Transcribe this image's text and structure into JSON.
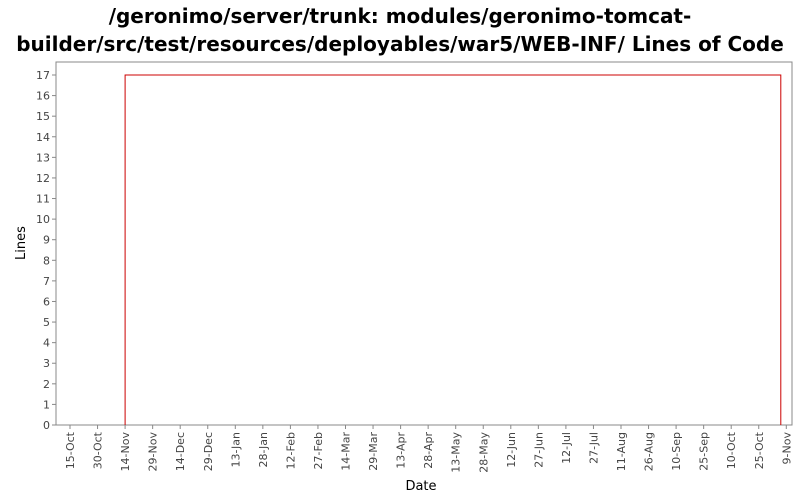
{
  "chart_data": {
    "type": "line",
    "title_lines": [
      "/geronimo/server/trunk: modules/geronimo-tomcat-",
      "builder/src/test/resources/deployables/war5/WEB-INF/ Lines of Code"
    ],
    "xlabel": "Date",
    "ylabel": "Lines",
    "x_tick_labels": [
      "15-Oct",
      "30-Oct",
      "14-Nov",
      "29-Nov",
      "14-Dec",
      "29-Dec",
      "13-Jan",
      "28-Jan",
      "12-Feb",
      "27-Feb",
      "14-Mar",
      "29-Mar",
      "13-Apr",
      "28-Apr",
      "13-May",
      "28-May",
      "12-Jun",
      "27-Jun",
      "12-Jul",
      "27-Jul",
      "11-Aug",
      "26-Aug",
      "10-Sep",
      "25-Sep",
      "10-Oct",
      "25-Oct",
      "9-Nov"
    ],
    "ylim": [
      0,
      17
    ],
    "y_ticks": [
      0,
      1,
      2,
      3,
      4,
      5,
      6,
      7,
      8,
      9,
      10,
      11,
      12,
      13,
      14,
      15,
      16,
      17
    ],
    "grid": false,
    "series": [
      {
        "color": "#cc0000",
        "points": [
          {
            "x": "14-Nov",
            "y": 0
          },
          {
            "x": "14-Nov",
            "y": 17
          },
          {
            "x": "6-Nov",
            "y": 17
          },
          {
            "x": "6-Nov",
            "y": 0
          }
        ]
      }
    ]
  }
}
